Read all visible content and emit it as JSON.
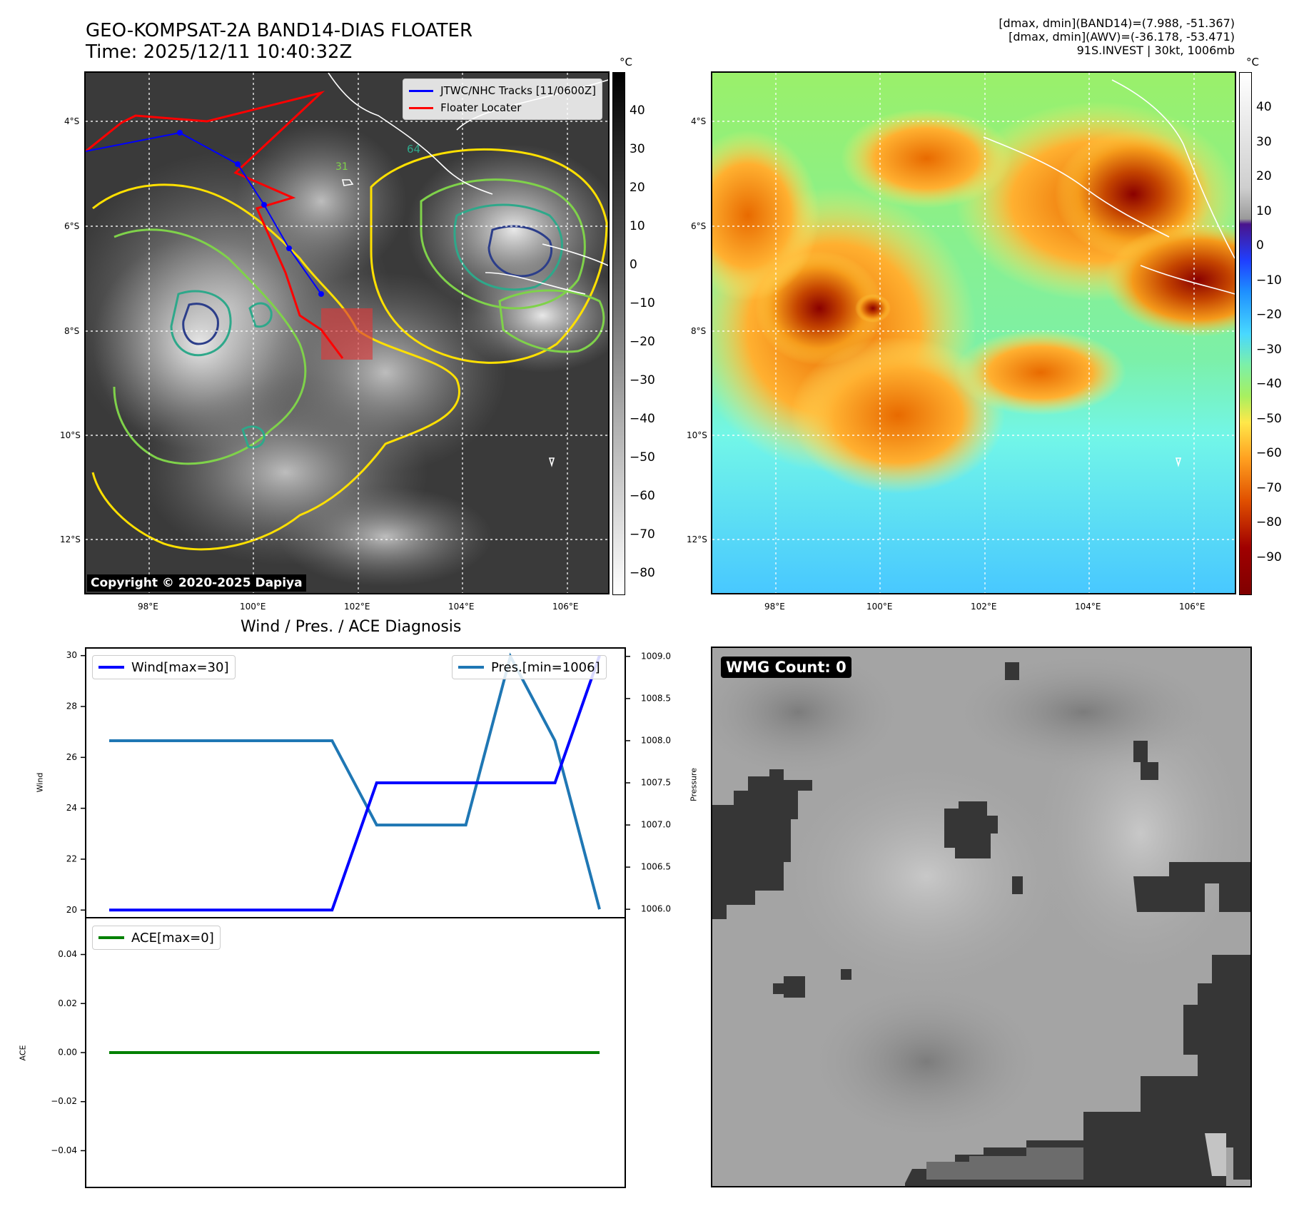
{
  "header": {
    "title_line1": "GEO-KOMPSAT-2A BAND14-DIAS FLOATER",
    "title_line2": "Time: 2025/12/11 10:40:32Z",
    "info_line1": "[dmax, dmin](BAND14)=(7.988, -51.367)",
    "info_line2": "[dmax, dmin](AWV)=(-36.178, -53.471)",
    "info_line3": "91S.INVEST | 30kt, 1006mb"
  },
  "map_left": {
    "lat_labels": [
      "4°S",
      "6°S",
      "8°S",
      "10°S",
      "12°S"
    ],
    "lon_labels": [
      "98°E",
      "100°E",
      "102°E",
      "104°E",
      "106°E"
    ],
    "legend": {
      "track": "JTWC/NHC Tracks [11/0600Z]",
      "floater": "Floater Locater"
    },
    "copyright": "Copyright © 2020-2025 Dapiya",
    "contour_labels": [
      "64",
      "31"
    ],
    "colorbar": {
      "unit": "°C",
      "ticks": [
        "40",
        "30",
        "20",
        "10",
        "0",
        "−10",
        "−20",
        "−30",
        "−40",
        "−50",
        "−60",
        "−70",
        "−80"
      ]
    },
    "colors": {
      "track": "#0000ff",
      "floater": "#ff0000",
      "floater_box": "#d93a3a"
    }
  },
  "map_right": {
    "lat_labels": [
      "4°S",
      "6°S",
      "8°S",
      "10°S",
      "12°S"
    ],
    "lon_labels": [
      "98°E",
      "100°E",
      "102°E",
      "104°E",
      "106°E"
    ],
    "colorbar": {
      "unit": "°C",
      "ticks": [
        "40",
        "30",
        "20",
        "10",
        "0",
        "−10",
        "−20",
        "−30",
        "−40",
        "−50",
        "−60",
        "−70",
        "−80",
        "−90"
      ]
    }
  },
  "diagnosis": {
    "title": "Wind / Pres. / ACE Diagnosis",
    "wind_axis_label": "Wind",
    "pressure_axis_label": "Pressure",
    "ace_axis_label": "ACE",
    "legend_wind": "Wind[max=30]",
    "legend_pres": "Pres.[min=1006]",
    "legend_ace": "ACE[max=0]",
    "colors": {
      "wind": "#0000ff",
      "pressure": "#1f77b4",
      "ace": "#008000"
    }
  },
  "wmg": {
    "label": "WMG Count: 0"
  },
  "chart_data": [
    {
      "type": "line",
      "title": "Wind / Pres. / ACE Diagnosis",
      "series": [
        {
          "name": "Wind[max=30]",
          "axis": "left",
          "values": [
            20,
            20,
            20,
            20,
            20,
            20,
            25,
            25,
            25,
            25,
            25,
            30
          ]
        },
        {
          "name": "Pres.[min=1006]",
          "axis": "right",
          "values": [
            1008,
            1008,
            1008,
            1008,
            1008,
            1008,
            1007,
            1007,
            1007,
            1009,
            1008,
            1006
          ]
        }
      ],
      "ylabel": "Wind",
      "ylabel_right": "Pressure",
      "ylim": [
        19.7,
        30.3
      ],
      "ylim_right": [
        1005.9,
        1009.1
      ],
      "yticks": [
        "20",
        "22",
        "24",
        "26",
        "28",
        "30"
      ],
      "yticks_right": [
        "1006.0",
        "1006.5",
        "1007.0",
        "1007.5",
        "1008.0",
        "1008.5",
        "1009.0"
      ]
    },
    {
      "type": "line",
      "series": [
        {
          "name": "ACE[max=0]",
          "values": [
            0,
            0
          ]
        }
      ],
      "ylabel": "ACE",
      "ylim": [
        -0.055,
        0.055
      ],
      "yticks": [
        "0.04",
        "0.02",
        "0.00",
        "−0.02",
        "−0.04"
      ]
    }
  ]
}
